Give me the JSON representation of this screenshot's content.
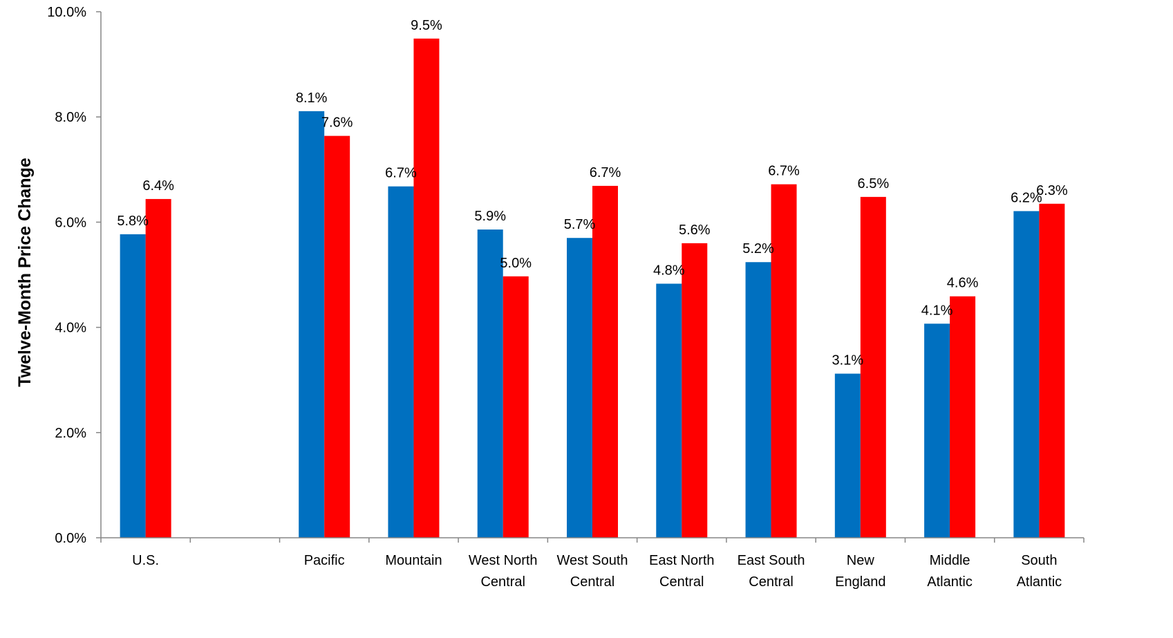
{
  "chart_data": {
    "type": "bar",
    "ylabel": "Twelve-Month Price Change",
    "xlabel": "",
    "ylim": [
      0,
      10
    ],
    "yticks": [
      "0.0%",
      "2.0%",
      "4.0%",
      "6.0%",
      "8.0%",
      "10.0%"
    ],
    "grid": false,
    "legend": "none",
    "categories": [
      [
        "U.S."
      ],
      [],
      [
        "Pacific"
      ],
      [
        "Mountain"
      ],
      [
        "West North",
        "Central"
      ],
      [
        "West South",
        "Central"
      ],
      [
        "East North",
        "Central"
      ],
      [
        "East South",
        "Central"
      ],
      [
        "New",
        "England"
      ],
      [
        "Middle",
        "Atlantic"
      ],
      [
        "South",
        "Atlantic"
      ]
    ],
    "series": [
      {
        "color": "#0070C0",
        "values": [
          5.77,
          null,
          8.11,
          6.68,
          5.86,
          5.7,
          4.83,
          5.24,
          3.12,
          4.07,
          6.21
        ],
        "labels": [
          "5.8%",
          "",
          "8.1%",
          "6.7%",
          "5.9%",
          "5.7%",
          "4.8%",
          "5.2%",
          "3.1%",
          "4.1%",
          "6.2%"
        ]
      },
      {
        "color": "#FF0000",
        "values": [
          6.44,
          null,
          7.64,
          9.49,
          4.97,
          6.69,
          5.6,
          6.72,
          6.48,
          4.59,
          6.35
        ],
        "labels": [
          "6.4%",
          "",
          "7.6%",
          "9.5%",
          "5.0%",
          "6.7%",
          "5.6%",
          "6.7%",
          "6.5%",
          "4.6%",
          "6.3%"
        ]
      }
    ]
  }
}
